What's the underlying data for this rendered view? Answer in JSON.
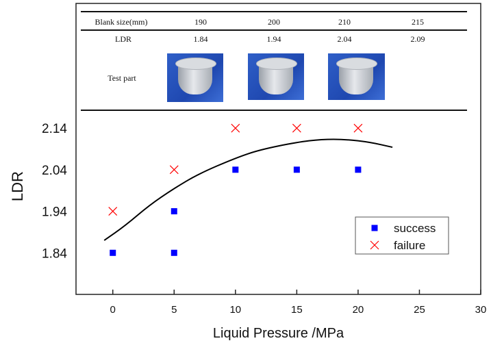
{
  "chart_data": {
    "type": "scatter",
    "xlabel": "Liquid Pressure /MPa",
    "ylabel": "LDR",
    "xlim": [
      -3,
      30
    ],
    "ylim": [
      1.74,
      2.44
    ],
    "xticks": [
      0,
      5,
      10,
      15,
      20,
      25,
      30
    ],
    "yticks": [
      1.84,
      1.94,
      2.04,
      2.14
    ],
    "grid": false,
    "legend_position": "right",
    "series": [
      {
        "name": "success",
        "marker": "square",
        "color": "#0000ff",
        "points": [
          [
            0,
            1.84
          ],
          [
            5,
            1.84
          ],
          [
            5,
            1.94
          ],
          [
            10,
            2.04
          ],
          [
            15,
            2.04
          ],
          [
            20,
            2.04
          ]
        ]
      },
      {
        "name": "failure",
        "marker": "x",
        "color": "#ff0000",
        "points": [
          [
            0,
            1.94
          ],
          [
            5,
            2.04
          ],
          [
            10,
            2.14
          ],
          [
            15,
            2.14
          ],
          [
            20,
            2.14
          ]
        ]
      }
    ],
    "curve": {
      "color": "#000000",
      "points": [
        [
          -0.7,
          1.87
        ],
        [
          1,
          1.905
        ],
        [
          3,
          1.955
        ],
        [
          5,
          1.995
        ],
        [
          7,
          2.03
        ],
        [
          10,
          2.068
        ],
        [
          12,
          2.088
        ],
        [
          15,
          2.106
        ],
        [
          17,
          2.113
        ],
        [
          19,
          2.113
        ],
        [
          21,
          2.106
        ],
        [
          22.8,
          2.094
        ]
      ]
    },
    "table": {
      "headers": [
        "Blank size(mm)",
        "190",
        "200",
        "210",
        "215"
      ],
      "ldr_label": "LDR",
      "ldr_values": [
        "1.84",
        "1.94",
        "2.04",
        "2.09"
      ],
      "test_part_label": "Test part"
    }
  }
}
